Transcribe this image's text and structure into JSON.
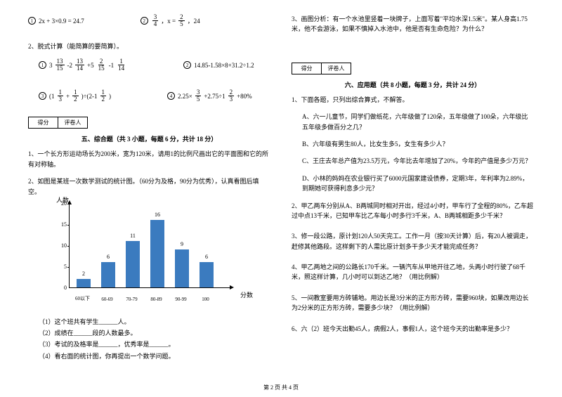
{
  "left": {
    "eq1a": "2x + 3×0.9 = 24.7",
    "eq1b_pre": "，x =",
    "eq1b_mid": "，24",
    "q2": "2、脱式计算（能简算的要简算）。",
    "eq2c": "14.85-1.58×8+31.2÷1.2",
    "eq2d": "4×2.25×",
    "eq2d_mid": "+2.75÷1",
    "eq2d_end": "+80%",
    "sec5_title": "五、综合题（共 3 小题，每题 6 分，共计 18 分）",
    "q5_1": "1、一个长方形运动场长为200米，宽为120米，请用1的比例尺画出它的平面图和它的所有对称轴。",
    "q5_2": "2、如图是某班一次数学测试的统计图。（60分为及格，90分为优秀），认真看图后填空。",
    "chart": {
      "y_label": "人数",
      "x_label": "分数",
      "y_ticks": [
        0,
        5,
        10,
        15,
        20
      ],
      "x_labels": [
        "60以下",
        "60-69",
        "70-79",
        "80-89",
        "90-99",
        "100"
      ],
      "values": [
        2,
        6,
        11,
        16,
        9,
        6
      ],
      "y_max": 20,
      "bar_color": "#3b7bbf",
      "bg_color": "#ffffff"
    },
    "fill1": "（1）这个班共有学生______人。",
    "fill2": "（2）成绩在______段的人数最多。",
    "fill3": "（3）考试的及格率是______，优秀率是______。",
    "fill4": "（4）看右面的统计图，你再提出一个数学问题。",
    "score_l": "得分",
    "score_r": "评卷人"
  },
  "right": {
    "q5_3": "3、画图分析：有一个水池里竖着一块牌子，上面写着\"平均水深1.5米\"。某人身高1.75米，他不会游泳，如果不慎掉入水池中，他是否有生命危险？为什么？",
    "sec6_title": "六、应用题（共 8 小题，每题 3 分，共计 24 分）",
    "q6_1": "1、下面各题，只列出综合算式，不解答。",
    "q6_1a": "A、六一儿童节，同学们做纸花，六年级做了120朵，五年级做了100朵，六年级比五年级多做百分之几？",
    "q6_1b": "B、六年级有男生80人，比女生多5，女生有多少人？",
    "q6_1c": "C、王庄去年总产值为23.5万元，今年比去年增加了20%，今年的产值是多少万元？",
    "q6_1d": "D、小林的妈妈在农业银行买了6000元国家建设债券，定期3年，年利率为2.89%，到期她可获得利息多少元？",
    "q6_2": "2、甲乙两车分别从A、B两城同时相对开出，经过4小时，甲车行了全程的80%，乙车超过中点13千米，已知甲车比乙车每小时多行3千米，A、B两城相距多少千米？",
    "q6_3": "3、修一段公路，原计划120人50天完工。工作一月（按30天计算）后，有20人被调走，赶修其他路段。这样剩下的人需比原计划多干多少天才能完成任务？",
    "q6_4": "4、甲乙两地之间的公路长170千米。一辆汽车从甲地开往乙地，头两小时行驶了68千米，照这样计算，几小时可以到达乙地？（用比例解）",
    "q6_5": "5、一间教室要用方砖铺地。用边长是3分米的正方形方砖，需要960块，如果改用边长为2分米的正方形方砖，需要多少块？（用比例解）",
    "q6_6": "6、六（2）班今天出勤45人，病假2人，事假1人，这个班今天的出勤率是多少？",
    "score_l": "得分",
    "score_r": "评卷人"
  },
  "footer": "第 2 页 共 4 页",
  "fracs": {
    "f34n": "3",
    "f34d": "4",
    "f25n": "2",
    "f25d": "5",
    "f1315n": "13",
    "f1315d": "15",
    "f1314n": "13",
    "f1314d": "14",
    "f215n": "2",
    "f215d": "15",
    "f114n": "1",
    "f114d": "14",
    "f113n": "1",
    "f113d": "3",
    "f12n": "1",
    "f12d": "2",
    "f112n": "1",
    "f112d": "2",
    "f35n": "3",
    "f35d": "5",
    "f23n": "2",
    "f23d": "3"
  }
}
